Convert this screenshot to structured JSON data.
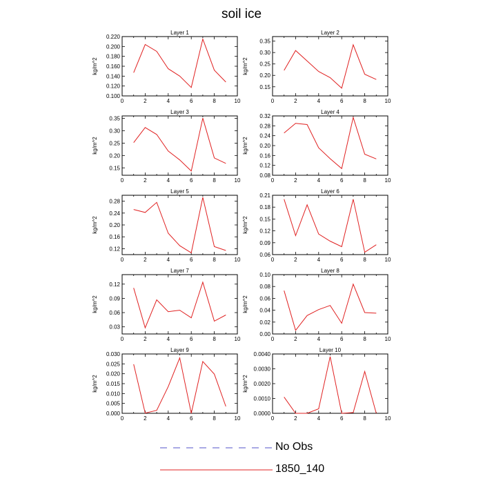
{
  "title": "soil ice",
  "legend": [
    {
      "label": "No Obs",
      "color": "#5050c8",
      "dash": true
    },
    {
      "label": "1850_140",
      "color": "#e02020",
      "dash": false
    }
  ],
  "chart_data": [
    {
      "type": "line",
      "title": "Layer 1",
      "ylabel": "kg/m^2",
      "xlim": [
        0,
        10
      ],
      "xticks": [
        0,
        2,
        4,
        6,
        8,
        10
      ],
      "ylim": [
        0.1,
        0.22
      ],
      "yticks": [
        "0.100",
        "0.120",
        "0.140",
        "0.160",
        "0.180",
        "0.200",
        "0.220"
      ],
      "ytick_values": [
        0.1,
        0.12,
        0.14,
        0.16,
        0.18,
        0.2,
        0.22
      ],
      "series": [
        {
          "name": "1850_140",
          "x": [
            1,
            2,
            3,
            4,
            5,
            6,
            7,
            8,
            9
          ],
          "y": [
            0.147,
            0.204,
            0.19,
            0.155,
            0.14,
            0.117,
            0.215,
            0.152,
            0.128
          ]
        }
      ]
    },
    {
      "type": "line",
      "title": "Layer 2",
      "ylabel": "kg/m^2",
      "xlim": [
        0,
        10
      ],
      "xticks": [
        0,
        2,
        4,
        6,
        8,
        10
      ],
      "ylim": [
        0.11,
        0.37
      ],
      "yticks": [
        "0.15",
        "0.20",
        "0.25",
        "0.30",
        "0.35"
      ],
      "ytick_values": [
        0.15,
        0.2,
        0.25,
        0.3,
        0.35
      ],
      "series": [
        {
          "name": "1850_140",
          "x": [
            1,
            2,
            3,
            4,
            5,
            6,
            7,
            8,
            9
          ],
          "y": [
            0.222,
            0.309,
            0.263,
            0.217,
            0.19,
            0.144,
            0.334,
            0.205,
            0.182
          ]
        }
      ]
    },
    {
      "type": "line",
      "title": "Layer 3",
      "ylabel": "kg/m^2",
      "xlim": [
        0,
        10
      ],
      "xticks": [
        0,
        2,
        4,
        6,
        8,
        10
      ],
      "ylim": [
        0.12,
        0.36
      ],
      "yticks": [
        "0.15",
        "0.20",
        "0.25",
        "0.30",
        "0.35"
      ],
      "ytick_values": [
        0.15,
        0.2,
        0.25,
        0.3,
        0.35
      ],
      "series": [
        {
          "name": "1850_140",
          "x": [
            1,
            2,
            3,
            4,
            5,
            6,
            7,
            8,
            9
          ],
          "y": [
            0.252,
            0.313,
            0.285,
            0.218,
            0.182,
            0.137,
            0.351,
            0.19,
            0.168
          ]
        }
      ]
    },
    {
      "type": "line",
      "title": "Layer 4",
      "ylabel": "kg/m^2",
      "xlim": [
        0,
        10
      ],
      "xticks": [
        0,
        2,
        4,
        6,
        8,
        10
      ],
      "ylim": [
        0.08,
        0.32
      ],
      "yticks": [
        "0.08",
        "0.12",
        "0.16",
        "0.20",
        "0.24",
        "0.28",
        "0.32"
      ],
      "ytick_values": [
        0.08,
        0.12,
        0.16,
        0.2,
        0.24,
        0.28,
        0.32
      ],
      "series": [
        {
          "name": "1850_140",
          "x": [
            1,
            2,
            3,
            4,
            5,
            6,
            7,
            8,
            9
          ],
          "y": [
            0.251,
            0.29,
            0.285,
            0.191,
            0.147,
            0.107,
            0.314,
            0.165,
            0.146
          ]
        }
      ]
    },
    {
      "type": "line",
      "title": "Layer 5",
      "ylabel": "kg/m^2",
      "xlim": [
        0,
        10
      ],
      "xticks": [
        0,
        2,
        4,
        6,
        8,
        10
      ],
      "ylim": [
        0.1,
        0.3
      ],
      "yticks": [
        "0.12",
        "0.16",
        "0.20",
        "0.24",
        "0.28"
      ],
      "ytick_values": [
        0.12,
        0.16,
        0.2,
        0.24,
        0.28
      ],
      "series": [
        {
          "name": "1850_140",
          "x": [
            1,
            2,
            3,
            4,
            5,
            6,
            7,
            8,
            9
          ],
          "y": [
            0.252,
            0.242,
            0.276,
            0.172,
            0.13,
            0.106,
            0.293,
            0.127,
            0.114
          ]
        }
      ]
    },
    {
      "type": "line",
      "title": "Layer 6",
      "ylabel": "kg/m^2",
      "xlim": [
        0,
        10
      ],
      "xticks": [
        0,
        2,
        4,
        6,
        8,
        10
      ],
      "ylim": [
        0.06,
        0.21
      ],
      "yticks": [
        "0.06",
        "0.09",
        "0.12",
        "0.15",
        "0.18",
        "0.21"
      ],
      "ytick_values": [
        0.06,
        0.09,
        0.12,
        0.15,
        0.18,
        0.21
      ],
      "series": [
        {
          "name": "1850_140",
          "x": [
            1,
            2,
            3,
            4,
            5,
            6,
            7,
            8,
            9
          ],
          "y": [
            0.2,
            0.108,
            0.186,
            0.112,
            0.094,
            0.08,
            0.2,
            0.066,
            0.085
          ]
        }
      ]
    },
    {
      "type": "line",
      "title": "Layer 7",
      "ylabel": "kg/m^2",
      "xlim": [
        0,
        10
      ],
      "xticks": [
        0,
        2,
        4,
        6,
        8,
        10
      ],
      "ylim": [
        0.015,
        0.14
      ],
      "yticks": [
        "0.03",
        "0.06",
        "0.09",
        "0.12"
      ],
      "ytick_values": [
        0.03,
        0.06,
        0.09,
        0.12
      ],
      "series": [
        {
          "name": "1850_140",
          "x": [
            1,
            2,
            3,
            4,
            5,
            6,
            7,
            8,
            9
          ],
          "y": [
            0.112,
            0.028,
            0.087,
            0.062,
            0.065,
            0.049,
            0.124,
            0.042,
            0.055
          ]
        }
      ]
    },
    {
      "type": "line",
      "title": "Layer 8",
      "ylabel": "kg/m^2",
      "xlim": [
        0,
        10
      ],
      "xticks": [
        0,
        2,
        4,
        6,
        8,
        10
      ],
      "ylim": [
        0.0,
        0.1
      ],
      "yticks": [
        "0.00",
        "0.02",
        "0.04",
        "0.06",
        "0.08",
        "0.10"
      ],
      "ytick_values": [
        0.0,
        0.02,
        0.04,
        0.06,
        0.08,
        0.1
      ],
      "series": [
        {
          "name": "1850_140",
          "x": [
            1,
            2,
            3,
            4,
            5,
            6,
            7,
            8,
            9
          ],
          "y": [
            0.073,
            0.006,
            0.031,
            0.041,
            0.048,
            0.018,
            0.084,
            0.036,
            0.035
          ]
        }
      ]
    },
    {
      "type": "line",
      "title": "Layer 9",
      "ylabel": "kg/m^2",
      "xlim": [
        0,
        10
      ],
      "xticks": [
        0,
        2,
        4,
        6,
        8,
        10
      ],
      "ylim": [
        0.0,
        0.03
      ],
      "yticks": [
        "0.000",
        "0.005",
        "0.010",
        "0.015",
        "0.020",
        "0.025",
        "0.030"
      ],
      "ytick_values": [
        0.0,
        0.005,
        0.01,
        0.015,
        0.02,
        0.025,
        0.03
      ],
      "series": [
        {
          "name": "1850_140",
          "x": [
            1,
            2,
            3,
            4,
            5,
            6,
            7,
            8,
            9
          ],
          "y": [
            0.0248,
            0.0001,
            0.0015,
            0.0135,
            0.028,
            0.0,
            0.0262,
            0.0198,
            0.0035
          ]
        }
      ]
    },
    {
      "type": "line",
      "title": "Layer 10",
      "ylabel": "kg/m^2",
      "xlim": [
        0,
        10
      ],
      "xticks": [
        0,
        2,
        4,
        6,
        8,
        10
      ],
      "ylim": [
        0.0,
        0.004
      ],
      "yticks": [
        "0.0000",
        "0.0010",
        "0.0020",
        "0.0030",
        "0.0040"
      ],
      "ytick_values": [
        0.0,
        0.001,
        0.002,
        0.003,
        0.004
      ],
      "series": [
        {
          "name": "1850_140",
          "x": [
            1,
            2,
            3,
            4,
            5,
            6,
            7,
            8,
            9
          ],
          "y": [
            0.0011,
            0.0,
            0.0,
            0.0003,
            0.00382,
            0.0,
            5e-05,
            0.00282,
            0.0
          ]
        }
      ]
    }
  ]
}
